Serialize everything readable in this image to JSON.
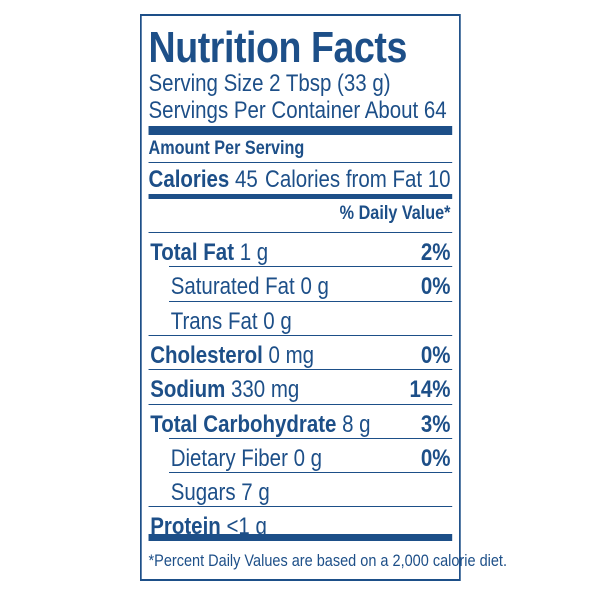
{
  "header": {
    "title": "Nutrition Facts",
    "serving_size": "Serving Size 2 Tbsp (33 g)",
    "servings_per_container": "Servings Per Container About 64"
  },
  "amount_per_serving": "Amount Per Serving",
  "calories": {
    "label": "Calories",
    "value": "45",
    "from_fat": "Calories from Fat 10"
  },
  "daily_value_header": "% Daily Value*",
  "nutrients": [
    {
      "name": "Total Fat",
      "amount": "1 g",
      "dv": "2%"
    },
    {
      "name": "Saturated Fat",
      "amount": "0 g",
      "dv": "0%"
    },
    {
      "name": "Trans Fat",
      "amount": "0 g"
    },
    {
      "name": "Cholesterol",
      "amount": "0 mg",
      "dv": "0%"
    },
    {
      "name": "Sodium",
      "amount": "330 mg",
      "dv": "14%"
    },
    {
      "name": "Total Carbohydrate",
      "amount": "8 g",
      "dv": "3%"
    },
    {
      "name": "Dietary Fiber",
      "amount": "0 g",
      "dv": "0%"
    },
    {
      "name": "Sugars",
      "amount": "7 g"
    },
    {
      "name": "Protein",
      "amount": "<1 g"
    }
  ],
  "footnote": "*Percent Daily Values are based on a 2,000 calorie diet."
}
